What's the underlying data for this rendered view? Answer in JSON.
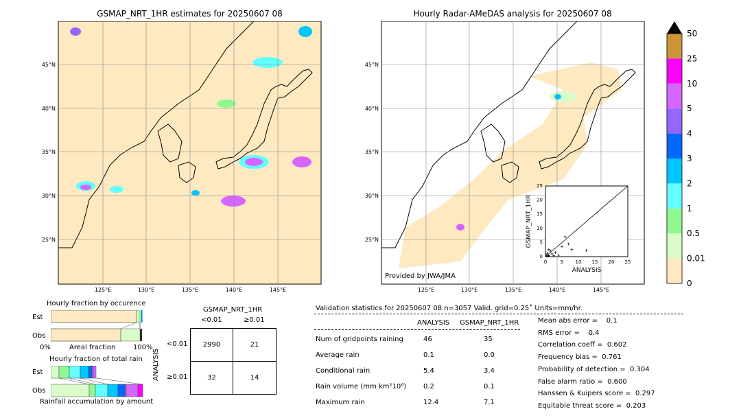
{
  "colors": {
    "c0": "#fee9c1",
    "c001": "#d9fcc9",
    "c05": "#90f890",
    "c1": "#62ffff",
    "c2": "#00c6ff",
    "c3": "#0068ff",
    "c4": "#9468ff",
    "c5": "#d466ff",
    "c10": "#ff00ff",
    "c25": "#cc9638"
  },
  "chart_data": [
    {
      "type": "heatmap",
      "title": "GSMAP_NRT_1HR estimates for 20250607 08",
      "lon_ticks": [
        "125°E",
        "130°E",
        "135°E",
        "140°E",
        "145°E"
      ],
      "lat_ticks": [
        "45°N",
        "40°N",
        "35°N",
        "30°N",
        "25°N"
      ]
    },
    {
      "type": "heatmap",
      "title": "Hourly Radar-AMeDAS analysis for 20250607 08",
      "lon_ticks": [
        "125°E",
        "130°E",
        "135°E",
        "140°E",
        "145°E"
      ],
      "lat_ticks": [
        "45°N",
        "40°N",
        "35°N",
        "30°N",
        "25°N"
      ],
      "annotation": "Provided by JWA/JMA"
    },
    {
      "type": "scatter",
      "xlabel": "ANALYSIS",
      "ylabel": "GSMAP_NRT_1HR",
      "xlim": [
        0,
        25
      ],
      "ylim": [
        0,
        25
      ],
      "ticks": [
        "0",
        "5",
        "10",
        "15",
        "20",
        "25"
      ],
      "points": [
        [
          0.3,
          0.5
        ],
        [
          0.5,
          1.2
        ],
        [
          1,
          0.4
        ],
        [
          1.5,
          2
        ],
        [
          2,
          1
        ],
        [
          2.5,
          0.3
        ],
        [
          3,
          1.5
        ],
        [
          4,
          0.5
        ],
        [
          5,
          3.5
        ],
        [
          6,
          7
        ],
        [
          7,
          4.5
        ],
        [
          8,
          2.5
        ],
        [
          12.4,
          2.2
        ],
        [
          1,
          2.5
        ],
        [
          0.8,
          0.2
        ]
      ]
    },
    {
      "type": "colorbar",
      "labels": [
        "50",
        "25",
        "10",
        "5",
        "4",
        "3",
        "2",
        "1",
        "0.5",
        "0.01",
        "0"
      ]
    }
  ],
  "occurrence": {
    "title": "Hourly fraction by occurence",
    "est": "Est",
    "obs": "Obs",
    "xlabel": "Areal fraction",
    "left": "0%",
    "right": "100%"
  },
  "totalrain": {
    "title": "Hourly fraction of total rain",
    "est": "Est",
    "obs": "Obs",
    "xlabel": "Rainfall accumulation by amount"
  },
  "contingency": {
    "title": "GSMAP_NRT_1HR",
    "col1": "<0.01",
    "col2": "≥0.01",
    "ylabel": "ANALYSIS",
    "row1": "<0.01",
    "row2": "≥0.01",
    "cells": [
      "2990",
      "21",
      "32",
      "14"
    ]
  },
  "stats": {
    "header": "Validation statistics for 20250607 08  n=3057 Valid. grid=0.25˚ Units=mm/hr.",
    "col1": "ANALYSIS",
    "col2": "GSMAP_NRT_1HR",
    "rows": [
      [
        "Num of gridpoints raining",
        "46",
        "35"
      ],
      [
        "Average rain",
        "0.1",
        "0.0"
      ],
      [
        "Conditional rain",
        "5.4",
        "3.4"
      ],
      [
        "Rain volume (mm km²10⁶)",
        "0.2",
        "0.1"
      ],
      [
        "Maximum rain",
        "12.4",
        "7.1"
      ]
    ],
    "scores": [
      "Mean abs error =    0.1",
      "RMS error =    0.4",
      "Correlation coeff =  0.602",
      "Frequency bias =  0.761",
      "Probability of detection =  0.304",
      "False alarm ratio =  0.600",
      "Hanssen & Kuipers score =  0.297",
      "Equitable threat score =  0.203"
    ]
  }
}
